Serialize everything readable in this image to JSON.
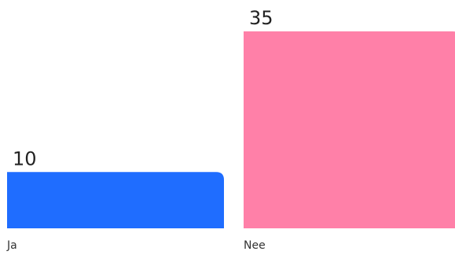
{
  "chart_data": {
    "type": "bar",
    "categories": [
      "Ja",
      "Nee"
    ],
    "values": [
      10,
      35
    ],
    "data_labels": [
      "10",
      "35"
    ],
    "colors": [
      "#1f6dff",
      "#ff80a8"
    ],
    "ylim": [
      0,
      35
    ],
    "grid": false,
    "title": "",
    "xlabel": "",
    "ylabel": ""
  }
}
